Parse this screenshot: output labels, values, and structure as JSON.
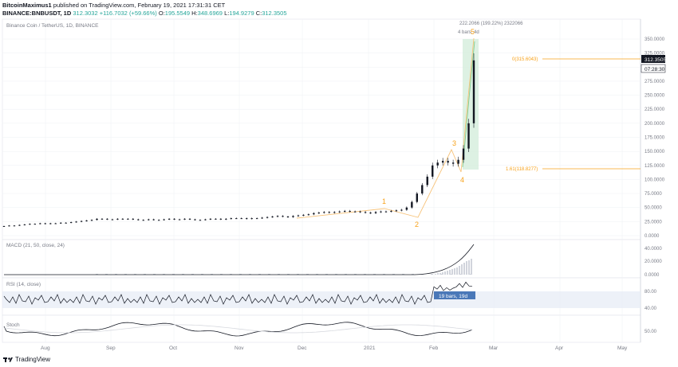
{
  "header": {
    "author": "BitcoinMaximus1",
    "published": "published on TradingView.com, February 19, 2021 17:31:31 CET",
    "symbol": "BINANCE:BNBUSDT, 1D",
    "o_label": "O:",
    "o": "195.5549",
    "h_label": "H:",
    "h": "348.6969",
    "l_label": "L:",
    "l": "194.9279",
    "c_label": "C:",
    "c": "312.3505",
    "last": "312.3032",
    "change": "+116.7032 (+59.66%)"
  },
  "footer": {
    "brand": "TradingView"
  },
  "colors": {
    "candle": "#131722",
    "orange": "#f7a21b",
    "price_tag": "#131722",
    "grid": "#eef0f4",
    "axis_text": "#787b86"
  },
  "chart_data": [
    {
      "type": "line",
      "title": "Binance Coin / TetherUS, 1D, BINANCE",
      "x_ticks": [
        "Aug",
        "Sep",
        "Oct",
        "Nov",
        "Dec",
        "2021",
        "Feb",
        "Mar",
        "Apr",
        "May"
      ],
      "y_ticks": [
        "350.0000",
        "325.0000",
        "300.0000",
        "275.0000",
        "250.0000",
        "225.0000",
        "200.0000",
        "175.0000",
        "150.0000",
        "125.0000",
        "100.0000",
        "75.0000",
        "50.0000",
        "25.0000",
        "0.0000"
      ],
      "ylim": [
        0,
        370
      ],
      "price_label": "312.3505",
      "countdown": "07:28:30",
      "series": [
        {
          "values": [
            17,
            18,
            18,
            19,
            20,
            21,
            21,
            22,
            21,
            22,
            22,
            23,
            23,
            24,
            25,
            26,
            27,
            28,
            30,
            30,
            29,
            29,
            30,
            30,
            30,
            29,
            28,
            28,
            29,
            28,
            28,
            29,
            30,
            29,
            29,
            30,
            29,
            28,
            28,
            29,
            30,
            30,
            29,
            30,
            31,
            31,
            31,
            30,
            31,
            31,
            32,
            33,
            34,
            35,
            34,
            33,
            35,
            36,
            37,
            38,
            40,
            41,
            42,
            41,
            42,
            43,
            44,
            43,
            43,
            42,
            41,
            40,
            42,
            43,
            43,
            44,
            45,
            46,
            50,
            60,
            75,
            90,
            105,
            125,
            130,
            133,
            130,
            128,
            135,
            155,
            200,
            312
          ]
        }
      ],
      "elliott_waves": [
        "1",
        "2",
        "3",
        "4",
        "5"
      ],
      "fib_levels": [
        {
          "label": "0(315.6043)",
          "value": 315.6043
        },
        {
          "label": "1.61(118.8277)",
          "value": 118.8277
        }
      ],
      "measure_top": "222.2066 (199.22%) 2322066",
      "measure_bars": "4 bars, 4d"
    },
    {
      "type": "line",
      "title": "MACD (21, 50, close, 24)",
      "y_ticks": [
        "40.0000",
        "20.0000",
        "0.0000"
      ],
      "ylim": [
        -2,
        50
      ]
    },
    {
      "type": "line",
      "title": "RSI (14, close)",
      "y_ticks": [
        "80.00",
        "40.00"
      ],
      "measure_label": "19 bars, 19d"
    },
    {
      "type": "line",
      "title": "Stoch",
      "y_ticks": [
        "50.00"
      ]
    }
  ]
}
